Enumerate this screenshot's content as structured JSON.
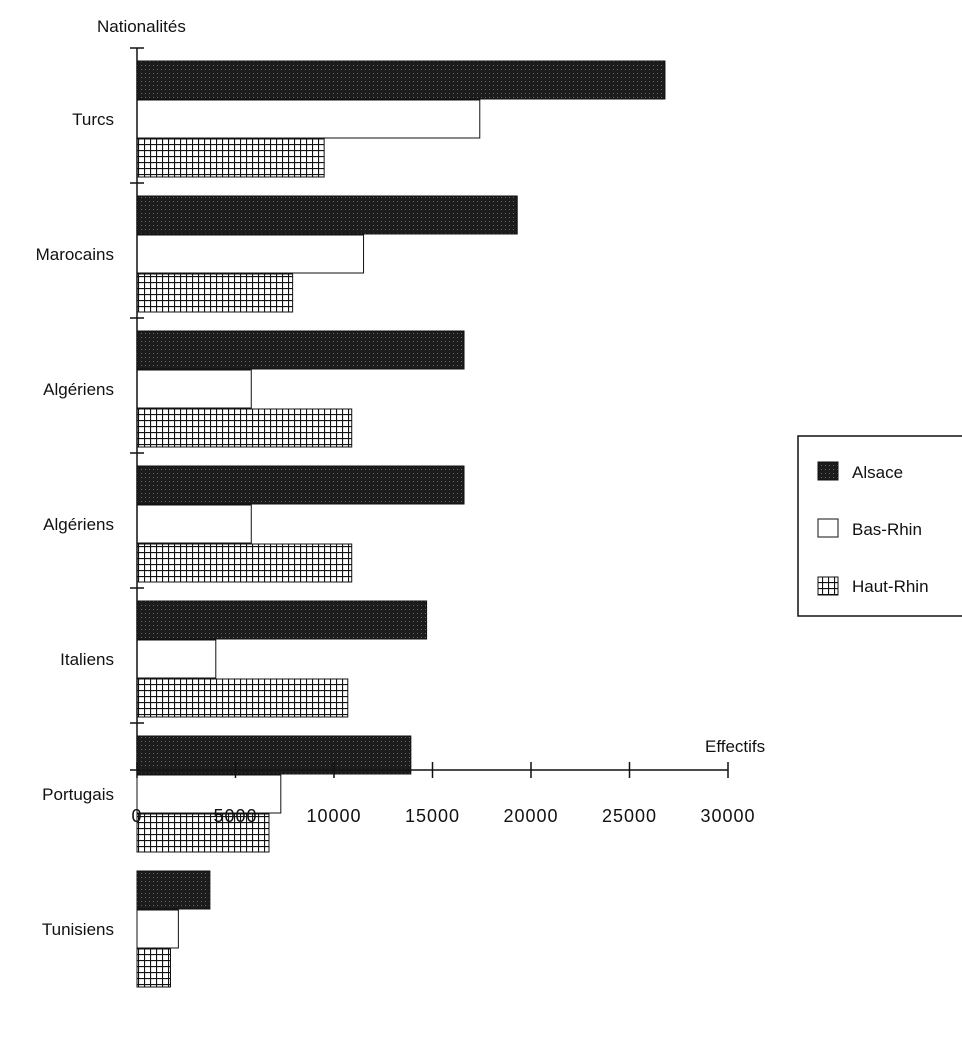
{
  "chart_data": {
    "type": "bar",
    "orientation": "horizontal",
    "ylabel": "Nationalités",
    "xlabel": "Effectifs",
    "categories": [
      "Turcs",
      "Marocains",
      "Algériens",
      "Algériens",
      "Italiens",
      "Portugais",
      "Tunisiens"
    ],
    "series": [
      {
        "name": "Alsace",
        "values": [
          26800,
          19300,
          16600,
          16600,
          14700,
          13900,
          3700
        ]
      },
      {
        "name": "Bas-Rhin",
        "values": [
          17400,
          11500,
          5800,
          5800,
          4000,
          7300,
          2100
        ]
      },
      {
        "name": "Haut-Rhin",
        "values": [
          9500,
          7900,
          10900,
          10900,
          10700,
          6700,
          1700
        ]
      }
    ],
    "xlim": [
      0,
      30000
    ],
    "xticks": [
      0,
      5000,
      10000,
      15000,
      20000,
      25000,
      30000
    ],
    "xtick_labels": [
      "0",
      "5000",
      "10000",
      "15000",
      "20000",
      "25000",
      "30000"
    ],
    "legend": {
      "placement": "right",
      "entries": [
        "Alsace",
        "Bas-Rhin",
        "Haut-Rhin"
      ]
    },
    "grid": false
  },
  "colors": {
    "Alsace": "#1a1a1a",
    "Bas-Rhin": "#ffffff",
    "Haut-Rhin": "#ffffff"
  }
}
